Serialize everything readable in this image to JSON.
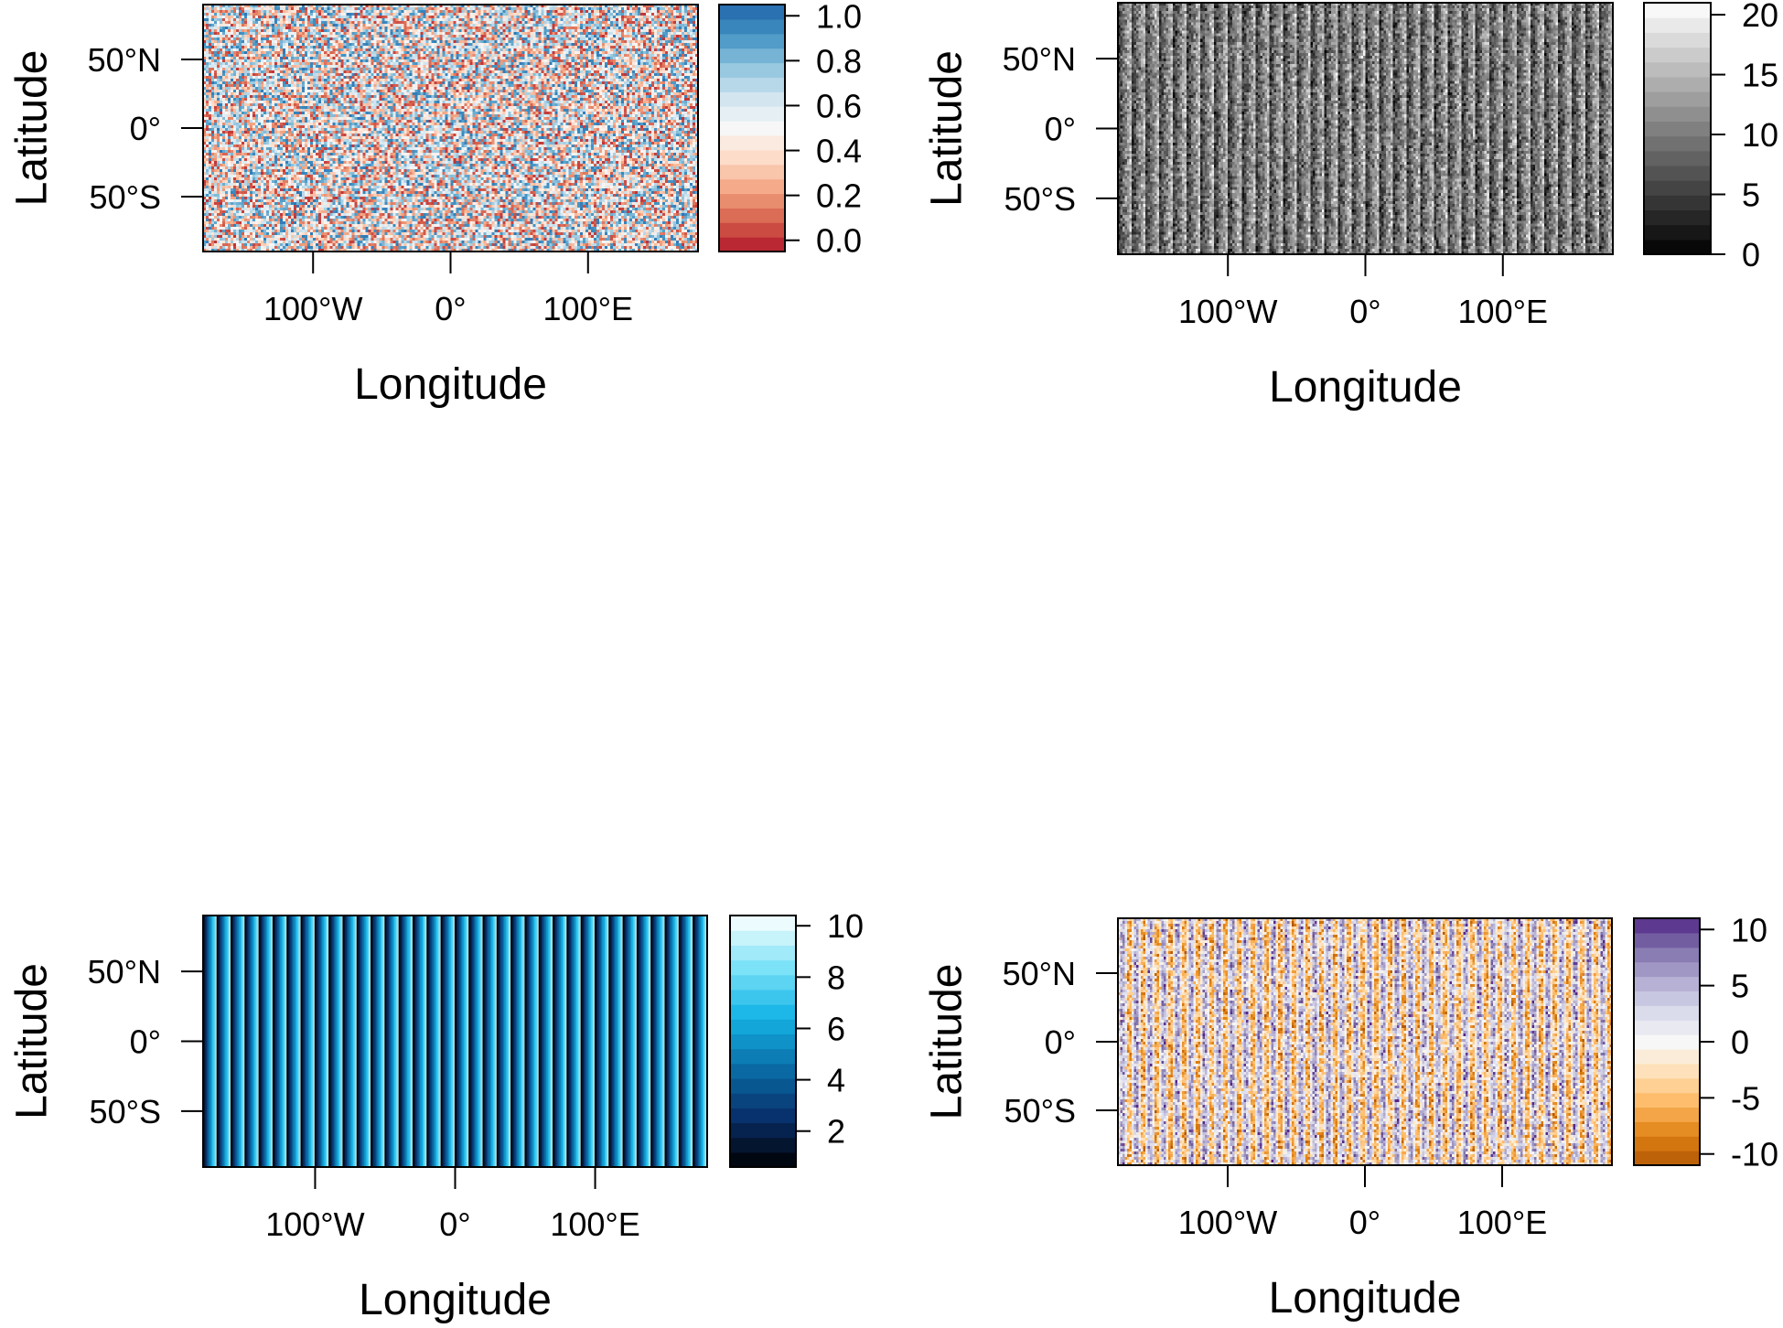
{
  "chart_data": [
    {
      "type": "heatmap",
      "xlabel": "Longitude",
      "ylabel": "Latitude",
      "xlim": [
        -180,
        180
      ],
      "ylim": [
        -90,
        90
      ],
      "x_ticks": [
        {
          "value": -100,
          "label": "100°W"
        },
        {
          "value": 0,
          "label": "0°"
        },
        {
          "value": 100,
          "label": "100°E"
        }
      ],
      "y_ticks": [
        {
          "value": 50,
          "label": "50°N"
        },
        {
          "value": 0,
          "label": "0°"
        },
        {
          "value": -50,
          "label": "50°S"
        }
      ],
      "pattern": "random",
      "value_range": [
        0,
        1
      ],
      "colorbar": {
        "palette": [
          "#b2182b",
          "#d6604d",
          "#f4a582",
          "#fddbc7",
          "#f7f7f7",
          "#d1e5f0",
          "#92c5de",
          "#4393c3",
          "#2166ac"
        ],
        "ticks": [
          "0.0",
          "0.2",
          "0.4",
          "0.6",
          "0.8",
          "1.0"
        ],
        "tick_values": [
          0,
          0.2,
          0.4,
          0.6,
          0.8,
          1.0
        ],
        "range": [
          -0.05,
          1.05
        ]
      }
    },
    {
      "type": "heatmap",
      "xlabel": "Longitude",
      "ylabel": "Latitude",
      "xlim": [
        -180,
        180
      ],
      "ylim": [
        -90,
        90
      ],
      "x_ticks": [
        {
          "value": -100,
          "label": "100°W"
        },
        {
          "value": 0,
          "label": "0°"
        },
        {
          "value": 100,
          "label": "100°E"
        }
      ],
      "y_ticks": [
        {
          "value": 50,
          "label": "50°N"
        },
        {
          "value": 0,
          "label": "0°"
        },
        {
          "value": -50,
          "label": "50°S"
        }
      ],
      "pattern": "stripes-noise",
      "stripe_count": 36,
      "value_range": [
        0,
        21
      ],
      "colorbar": {
        "palette": [
          "#000000",
          "#ffffff"
        ],
        "ticks": [
          "0",
          "5",
          "10",
          "15",
          "20"
        ],
        "tick_values": [
          0,
          5,
          10,
          15,
          20
        ],
        "range": [
          0,
          21
        ]
      }
    },
    {
      "type": "heatmap",
      "xlabel": "Longitude",
      "ylabel": "Latitude",
      "xlim": [
        -180,
        180
      ],
      "ylim": [
        -90,
        90
      ],
      "x_ticks": [
        {
          "value": -100,
          "label": "100°W"
        },
        {
          "value": 0,
          "label": "0°"
        },
        {
          "value": 100,
          "label": "100°E"
        }
      ],
      "y_ticks": [
        {
          "value": 50,
          "label": "50°N"
        },
        {
          "value": 0,
          "label": "0°"
        },
        {
          "value": -50,
          "label": "50°S"
        }
      ],
      "pattern": "stripes-gradient",
      "stripe_count": 36,
      "value_range": [
        1,
        10
      ],
      "colorbar": {
        "palette": [
          "#000000",
          "#08306b",
          "#0a6fa8",
          "#14b4e6",
          "#7fe3f7",
          "#ffffff"
        ],
        "ticks": [
          "2",
          "4",
          "6",
          "8",
          "10"
        ],
        "tick_values": [
          2,
          4,
          6,
          8,
          10
        ],
        "range": [
          0.6,
          10.4
        ]
      }
    },
    {
      "type": "heatmap",
      "xlabel": "Longitude",
      "ylabel": "Latitude",
      "xlim": [
        -180,
        180
      ],
      "ylim": [
        -90,
        90
      ],
      "x_ticks": [
        {
          "value": -100,
          "label": "100°W"
        },
        {
          "value": 0,
          "label": "0°"
        },
        {
          "value": 100,
          "label": "100°E"
        }
      ],
      "y_ticks": [
        {
          "value": 50,
          "label": "50°N"
        },
        {
          "value": 0,
          "label": "0°"
        },
        {
          "value": -50,
          "label": "50°S"
        }
      ],
      "pattern": "stripes-diverging",
      "stripe_count": 36,
      "value_range": [
        -11,
        11
      ],
      "colorbar": {
        "palette": [
          "#b35806",
          "#e08214",
          "#fdb863",
          "#fee0b6",
          "#f7f7f7",
          "#d8daeb",
          "#b2abd2",
          "#8073ac",
          "#542788"
        ],
        "ticks": [
          "-10",
          "-5",
          "0",
          "5",
          "10"
        ],
        "tick_values": [
          -10,
          -5,
          0,
          5,
          10
        ],
        "range": [
          -11,
          11
        ]
      }
    }
  ]
}
